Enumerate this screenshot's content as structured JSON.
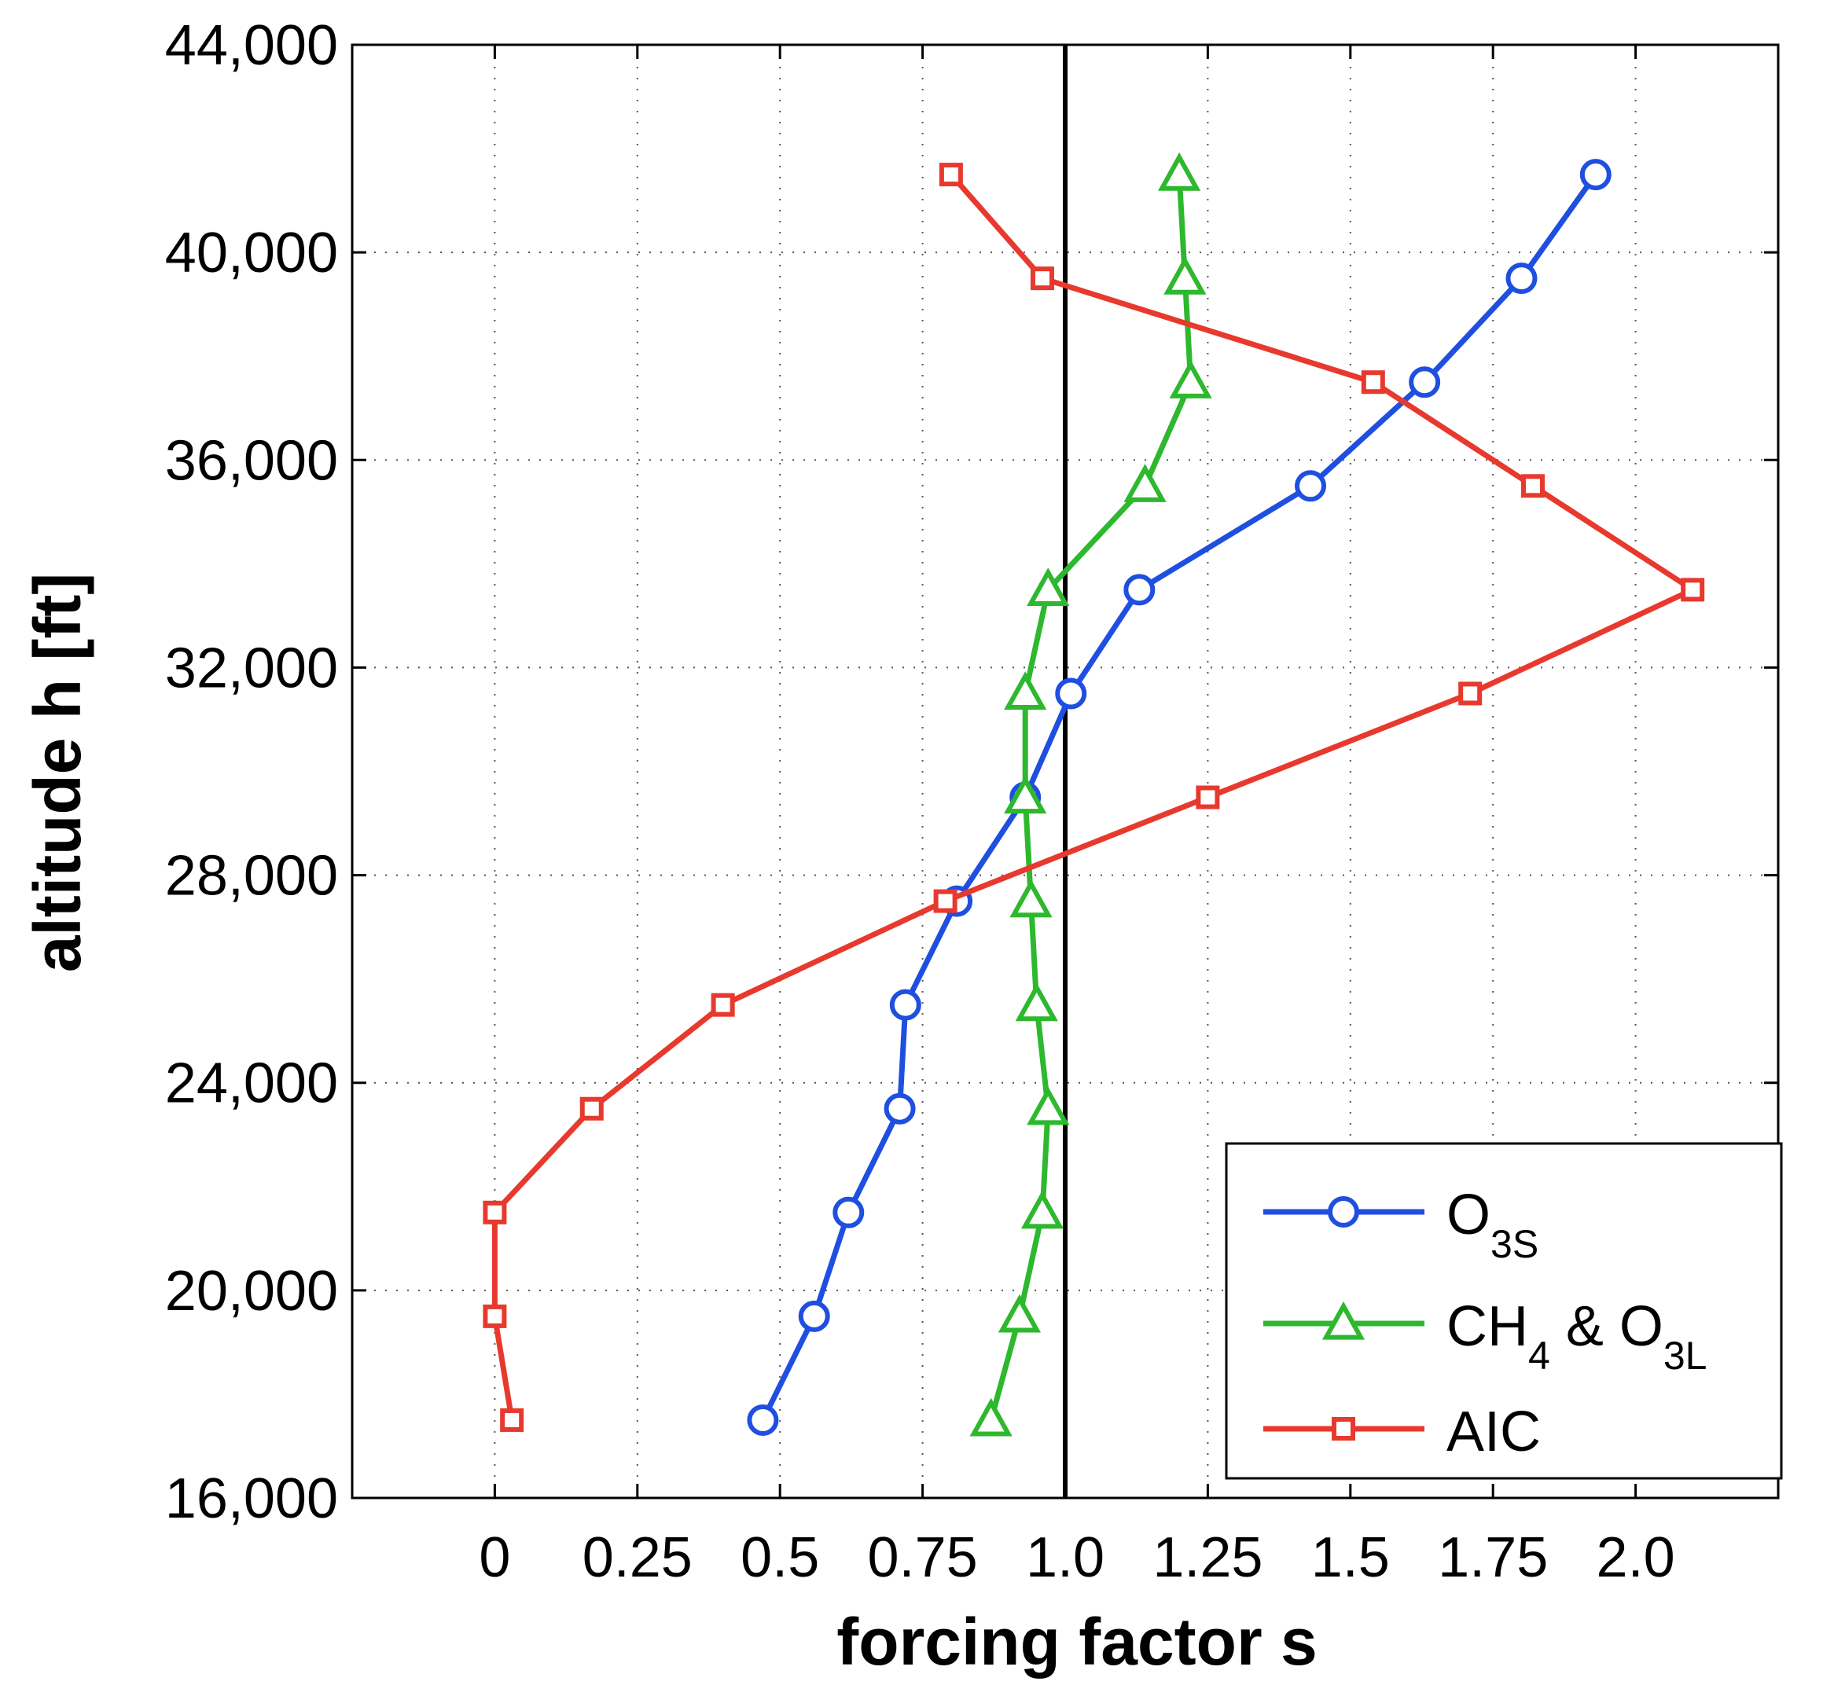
{
  "chart_data": {
    "type": "line",
    "xlabel": "forcing factor  s",
    "ylabel": "altitude  h  [ft]",
    "xlim": [
      -0.25,
      2.25
    ],
    "ylim": [
      16000,
      44000
    ],
    "x_ticks": [
      0,
      0.25,
      0.5,
      0.75,
      1.0,
      1.25,
      1.5,
      1.75,
      2.0
    ],
    "x_tick_labels": [
      "0",
      "0.25",
      "0.5",
      "0.75",
      "1.0",
      "1.25",
      "1.5",
      "1.75",
      "2.0"
    ],
    "y_ticks": [
      16000,
      20000,
      24000,
      28000,
      32000,
      36000,
      40000,
      44000
    ],
    "y_tick_labels": [
      "16,000",
      "20,000",
      "24,000",
      "28,000",
      "32,000",
      "36,000",
      "40,000",
      "44,000"
    ],
    "grid": true,
    "reference_line": {
      "x": 1.0,
      "color": "#000000"
    },
    "legend_position": "bottom-right",
    "series": [
      {
        "name": "O3S",
        "legend_main": "O",
        "legend_sub": "3S",
        "legend_tail": "",
        "legend_tail_sub": "",
        "color": "#1f4fe0",
        "marker": "circle",
        "x": [
          0.47,
          0.56,
          0.62,
          0.71,
          0.72,
          0.81,
          0.93,
          1.01,
          1.13,
          1.43,
          1.63,
          1.8,
          1.93
        ],
        "y": [
          17500,
          19500,
          21500,
          23500,
          25500,
          27500,
          29500,
          31500,
          33500,
          35500,
          37500,
          39500,
          41500
        ]
      },
      {
        "name": "CH4 & O3L",
        "legend_main": "CH",
        "legend_sub": "4",
        "legend_tail": " & O",
        "legend_tail_sub": "3L",
        "color": "#2db82d",
        "marker": "triangle",
        "x": [
          0.87,
          0.92,
          0.96,
          0.97,
          0.95,
          0.94,
          0.93,
          0.93,
          0.97,
          1.14,
          1.22,
          1.21,
          1.2
        ],
        "y": [
          17500,
          19500,
          21500,
          23500,
          25500,
          27500,
          29500,
          31500,
          33500,
          35500,
          37500,
          39500,
          41500
        ]
      },
      {
        "name": "AIC",
        "legend_main": "AIC",
        "legend_sub": "",
        "legend_tail": "",
        "legend_tail_sub": "",
        "color": "#e8392e",
        "marker": "square",
        "x": [
          0.03,
          0.0,
          0.0,
          0.17,
          0.4,
          0.79,
          1.25,
          1.71,
          2.1,
          1.82,
          1.54,
          0.96,
          0.8
        ],
        "y": [
          17500,
          19500,
          21500,
          23500,
          25500,
          27500,
          29500,
          31500,
          33500,
          35500,
          37500,
          39500,
          41500
        ]
      }
    ]
  }
}
